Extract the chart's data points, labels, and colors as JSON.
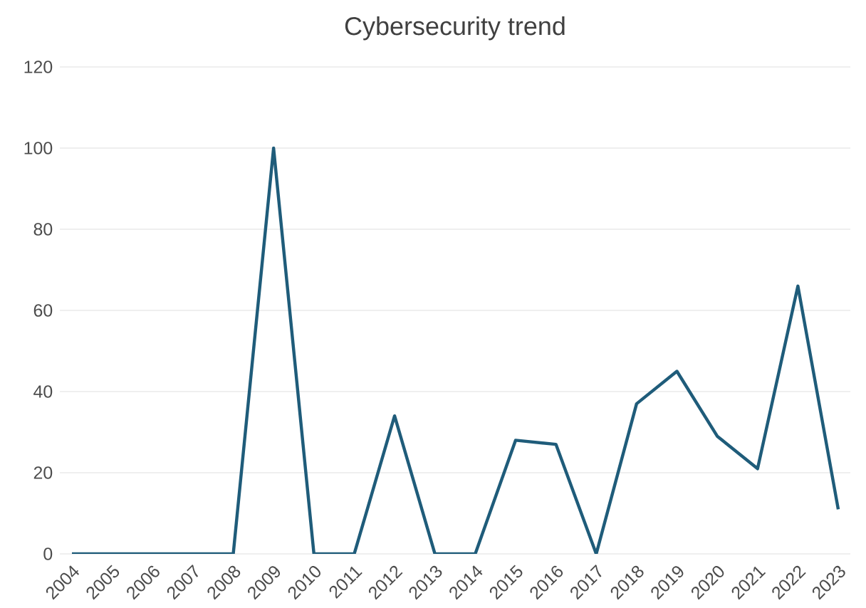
{
  "chart_data": {
    "type": "line",
    "title": "Cybersecurity trend",
    "categories": [
      "2004",
      "2005",
      "2006",
      "2007",
      "2008",
      "2009",
      "2010",
      "2011",
      "2012",
      "2013",
      "2014",
      "2015",
      "2016",
      "2017",
      "2018",
      "2019",
      "2020",
      "2021",
      "2022",
      "2023"
    ],
    "series": [
      {
        "color": "#1f5c7a",
        "values": [
          0,
          0,
          0,
          0,
          0,
          100,
          0,
          0,
          34,
          0,
          0,
          28,
          27,
          0,
          37,
          45,
          29,
          21,
          66,
          11
        ]
      }
    ],
    "ylim": [
      0,
      120
    ],
    "yticks": [
      0,
      20,
      40,
      60,
      80,
      100,
      120
    ],
    "grid": "y",
    "legend": false,
    "marker": "none",
    "line_style": "solid"
  }
}
